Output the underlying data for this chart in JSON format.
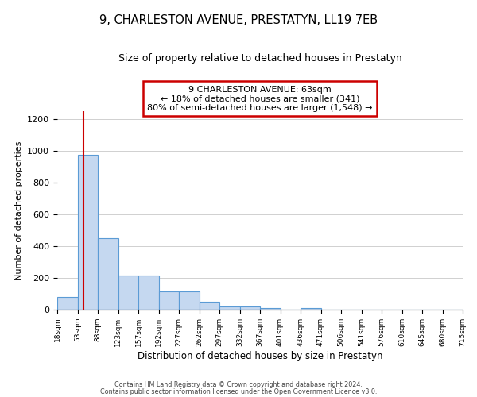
{
  "title": "9, CHARLESTON AVENUE, PRESTATYN, LL19 7EB",
  "subtitle": "Size of property relative to detached houses in Prestatyn",
  "xlabel": "Distribution of detached houses by size in Prestatyn",
  "ylabel": "Number of detached properties",
  "bar_color": "#c5d8f0",
  "bar_edge_color": "#5b9bd5",
  "bins": [
    "18sqm",
    "53sqm",
    "88sqm",
    "123sqm",
    "157sqm",
    "192sqm",
    "227sqm",
    "262sqm",
    "297sqm",
    "332sqm",
    "367sqm",
    "401sqm",
    "436sqm",
    "471sqm",
    "506sqm",
    "541sqm",
    "576sqm",
    "610sqm",
    "645sqm",
    "680sqm",
    "715sqm"
  ],
  "values": [
    80,
    975,
    450,
    215,
    215,
    115,
    115,
    50,
    22,
    20,
    12,
    0,
    8,
    0,
    0,
    0,
    0,
    0,
    0,
    0
  ],
  "ylim": [
    0,
    1250
  ],
  "yticks": [
    0,
    200,
    400,
    600,
    800,
    1000,
    1200
  ],
  "annotation_line1": "9 CHARLESTON AVENUE: 63sqm",
  "annotation_line2": "← 18% of detached houses are smaller (341)",
  "annotation_line3": "80% of semi-detached houses are larger (1,548) →",
  "annotation_box_color": "#ffffff",
  "annotation_box_edge_color": "#cc0000",
  "vline_color": "#cc0000",
  "footer1": "Contains HM Land Registry data © Crown copyright and database right 2024.",
  "footer2": "Contains public sector information licensed under the Open Government Licence v3.0.",
  "background_color": "#ffffff",
  "grid_color": "#d0d0d0"
}
